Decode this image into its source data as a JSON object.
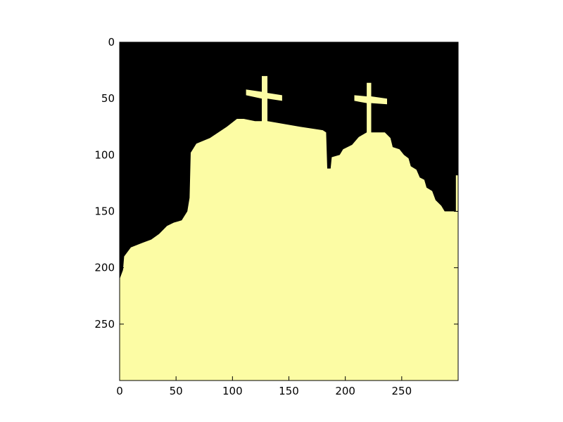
{
  "chart_data": {
    "type": "heatmap",
    "title": "",
    "xlabel": "",
    "ylabel": "",
    "xlim": [
      0,
      300
    ],
    "ylim": [
      300,
      0
    ],
    "x_ticks": [
      "0",
      "50",
      "100",
      "150",
      "200",
      "250"
    ],
    "y_ticks": [
      "0",
      "50",
      "100",
      "150",
      "200",
      "250"
    ],
    "grid": false,
    "legend": "none",
    "colormap": "binary mask (black / pale yellow)",
    "colors": {
      "background": "#000000",
      "foreground": "#fcfca4",
      "axes": "#000000"
    },
    "mask_boundary": [
      [
        0,
        210
      ],
      [
        3,
        202
      ],
      [
        4,
        190
      ],
      [
        10,
        182
      ],
      [
        20,
        178
      ],
      [
        28,
        175
      ],
      [
        35,
        170
      ],
      [
        42,
        163
      ],
      [
        48,
        160
      ],
      [
        55,
        158
      ],
      [
        60,
        150
      ],
      [
        62,
        138
      ],
      [
        63,
        98
      ],
      [
        68,
        90
      ],
      [
        80,
        85
      ],
      [
        95,
        75
      ],
      [
        104,
        68
      ],
      [
        110,
        68
      ],
      [
        120,
        70
      ],
      [
        126,
        70
      ],
      [
        126,
        50
      ],
      [
        112,
        47
      ],
      [
        112,
        42
      ],
      [
        126,
        44
      ],
      [
        126,
        30
      ],
      [
        131,
        30
      ],
      [
        131,
        45
      ],
      [
        144,
        47
      ],
      [
        144,
        52
      ],
      [
        131,
        50
      ],
      [
        131,
        70
      ],
      [
        160,
        75
      ],
      [
        180,
        78
      ],
      [
        183,
        80
      ],
      [
        184,
        112
      ],
      [
        187,
        112
      ],
      [
        188,
        102
      ],
      [
        195,
        100
      ],
      [
        198,
        95
      ],
      [
        206,
        91
      ],
      [
        212,
        84
      ],
      [
        219,
        80
      ],
      [
        219,
        54
      ],
      [
        208,
        52
      ],
      [
        208,
        47
      ],
      [
        219,
        48
      ],
      [
        219,
        36
      ],
      [
        223,
        36
      ],
      [
        223,
        48
      ],
      [
        237,
        50
      ],
      [
        237,
        55
      ],
      [
        223,
        54
      ],
      [
        223,
        80
      ],
      [
        235,
        80
      ],
      [
        240,
        85
      ],
      [
        242,
        93
      ],
      [
        248,
        95
      ],
      [
        252,
        100
      ],
      [
        256,
        103
      ],
      [
        258,
        110
      ],
      [
        263,
        113
      ],
      [
        266,
        120
      ],
      [
        270,
        122
      ],
      [
        272,
        129
      ],
      [
        277,
        132
      ],
      [
        280,
        140
      ],
      [
        285,
        145
      ],
      [
        288,
        150
      ],
      [
        298,
        150
      ],
      [
        298,
        118
      ],
      [
        300,
        118
      ],
      [
        300,
        300
      ],
      [
        0,
        300
      ]
    ]
  }
}
